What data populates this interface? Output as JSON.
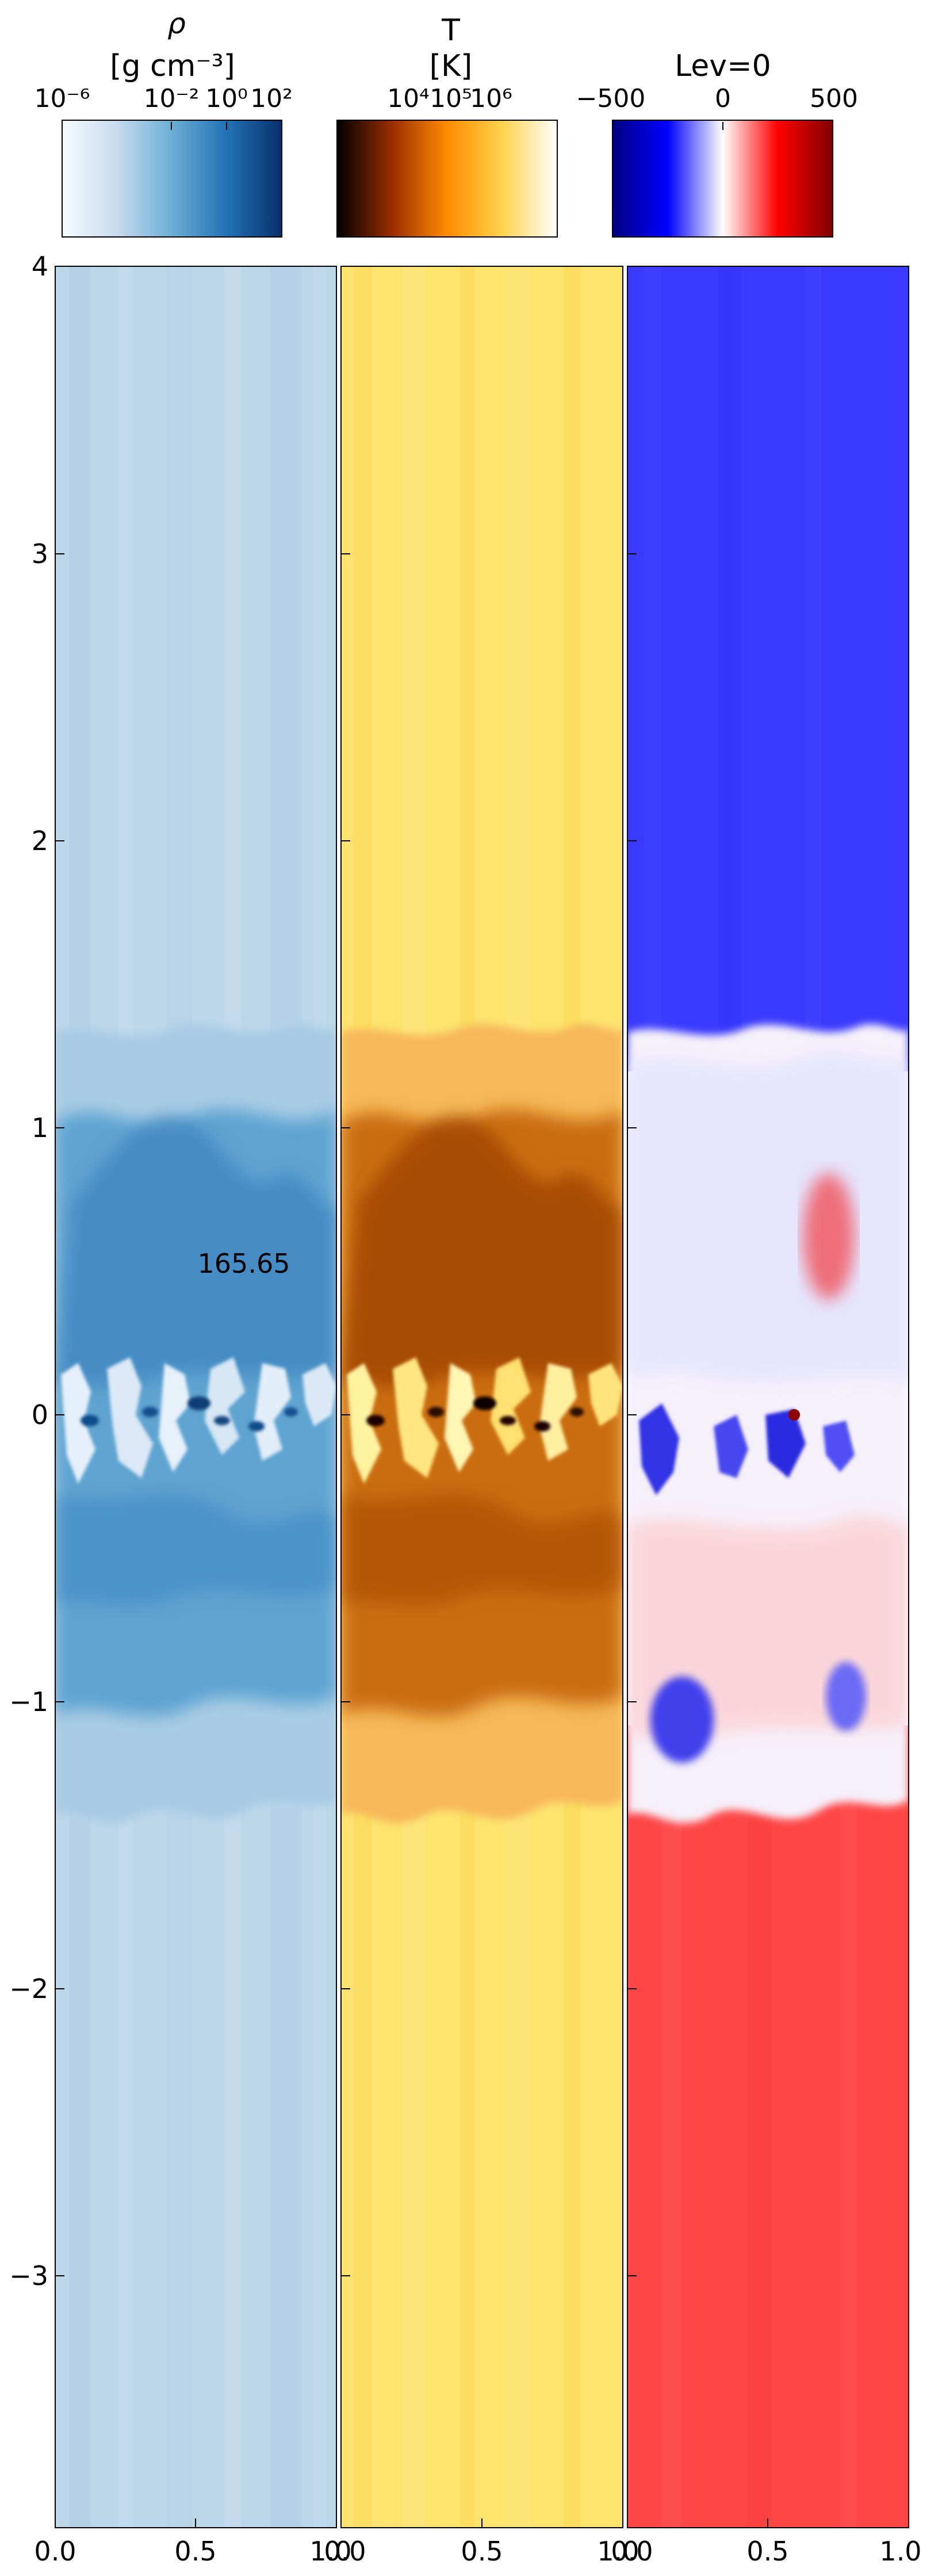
{
  "chart_data": [
    {
      "type": "heatmap",
      "colorbar": {
        "quantity": "ρ",
        "unit": "[g cm⁻³]",
        "scale": "log",
        "tick_labels": [
          "10⁻⁶",
          "10⁻²",
          "10⁰",
          "10²"
        ],
        "range": [
          "10⁻⁶",
          "10²"
        ],
        "colormap": [
          "#f7fbff",
          "#c6dbef",
          "#6baed6",
          "#2171b5",
          "#08306b"
        ]
      },
      "annotation": "165.65",
      "x_tick_labels": [
        "0.0",
        "0.5",
        "1.0"
      ],
      "xlim": [
        0,
        1
      ],
      "y_tick_labels": [
        "4",
        "3",
        "2",
        "1",
        "0",
        "−1",
        "−2",
        "−3"
      ],
      "ylim": [
        -3.9,
        4
      ],
      "colors": {
        "background_upper": "#bcd6ea",
        "background_lower": "#bdd7ea",
        "layer_mid": "#5aa2d0",
        "layer_dark": "#2d78b4",
        "cold_clumps": "#e8f1fa"
      }
    },
    {
      "type": "heatmap",
      "colorbar": {
        "quantity": "T",
        "unit": "[K]",
        "scale": "log",
        "tick_labels": [
          "10⁴",
          "10⁵",
          "10⁶"
        ],
        "colormap": [
          "#000000",
          "#9a2d00",
          "#ff8c00",
          "#ffd34d",
          "#ffffff"
        ]
      },
      "x_tick_labels": [
        "0.0",
        "0.5",
        "1.0"
      ],
      "xlim": [
        0,
        1
      ],
      "colors": {
        "background": "#fde36e",
        "layer_mid": "#c86a10",
        "layer_dark": "#9c4300",
        "hot_clumps": "#fff3a0"
      }
    },
    {
      "type": "heatmap",
      "colorbar": {
        "quantity": "Lev=0",
        "scale": "linear",
        "tick_labels": [
          "−500",
          "0",
          "500"
        ],
        "range": [
          -500,
          500
        ],
        "colormap": [
          "#000080",
          "#0000ff",
          "#ffffff",
          "#ff0000",
          "#800000"
        ]
      },
      "x_tick_labels": [
        "0.0",
        "0.5",
        "1.0"
      ],
      "xlim": [
        0,
        1
      ],
      "colors": {
        "upper": "#3a3aff",
        "lower": "#ff4646",
        "mixing": "#f6f0fa"
      }
    }
  ]
}
